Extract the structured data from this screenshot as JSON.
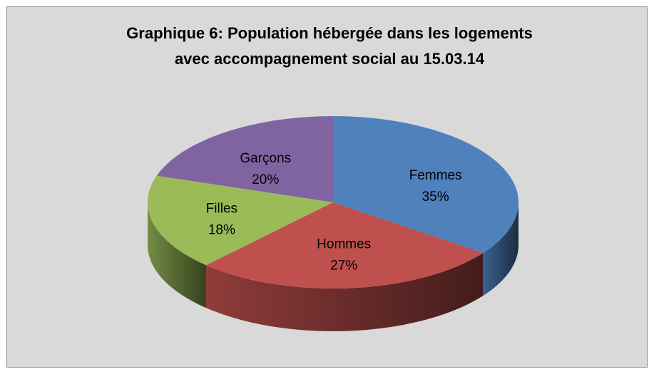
{
  "chart_data": {
    "type": "pie3d",
    "title": [
      "Graphique 6: Population hébergée dans les logements",
      "avec accompagnement social au 15.03.14"
    ],
    "categories": [
      "Femmes",
      "Hommes",
      "Filles",
      "Garçons"
    ],
    "values": [
      35,
      27,
      18,
      20
    ],
    "value_labels": [
      "35%",
      "27%",
      "18%",
      "20%"
    ],
    "colors": [
      "#4f81bd",
      "#c0504d",
      "#9bbb59",
      "#8064a2"
    ]
  }
}
